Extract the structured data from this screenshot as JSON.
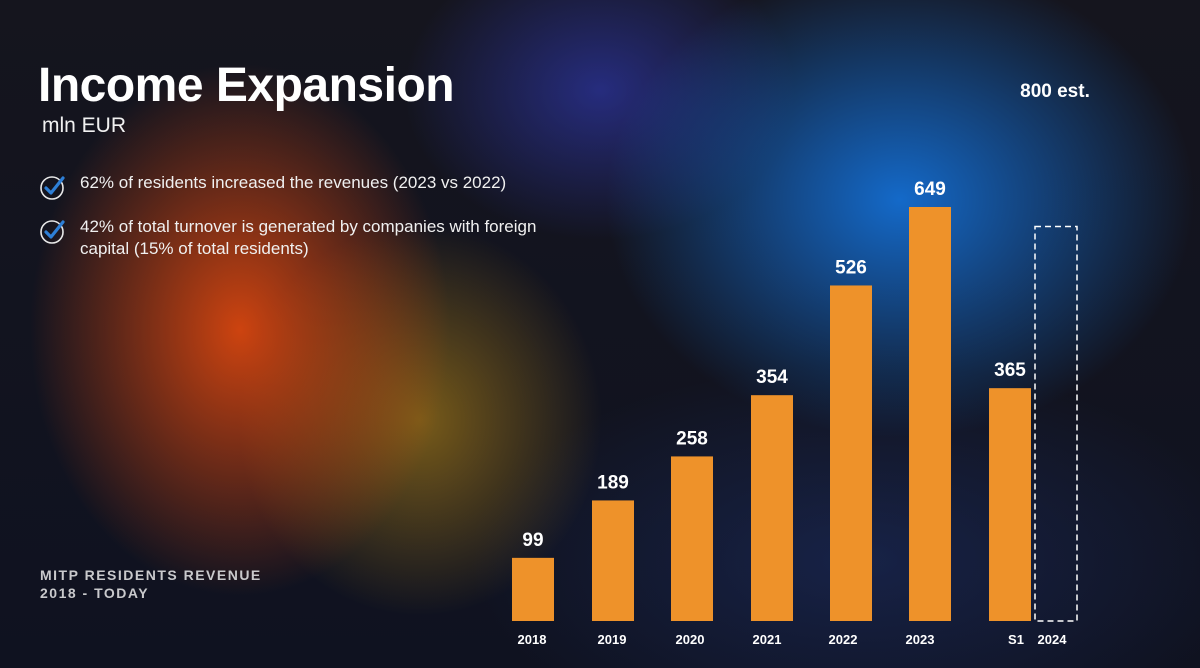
{
  "slide": {
    "title": "Income Expansion",
    "subtitle": "mln EUR",
    "bullets": [
      "62% of residents increased the revenues (2023 vs 2022)",
      "42% of total turnover is generated by companies with foreign capital (15% of total residents)"
    ],
    "caption_line1": "MITP RESIDENTS REVENUE",
    "caption_line2": "2018 - TODAY"
  },
  "colors": {
    "bar": "#ee922a",
    "check": "#2e7fd6"
  },
  "chart_data": {
    "type": "bar",
    "categories": [
      "2018",
      "2019",
      "2020",
      "2021",
      "2022",
      "2023",
      "S1",
      "2024"
    ],
    "values": [
      99,
      189,
      258,
      354,
      526,
      649,
      365,
      null
    ],
    "value_labels": [
      "99",
      "189",
      "258",
      "354",
      "526",
      "649",
      "365",
      ""
    ],
    "estimate": {
      "category": "2024",
      "value": 800,
      "label": "800 est.",
      "style": "dashed-outline"
    },
    "unit": "mln EUR",
    "grid": false,
    "legend": "none"
  }
}
